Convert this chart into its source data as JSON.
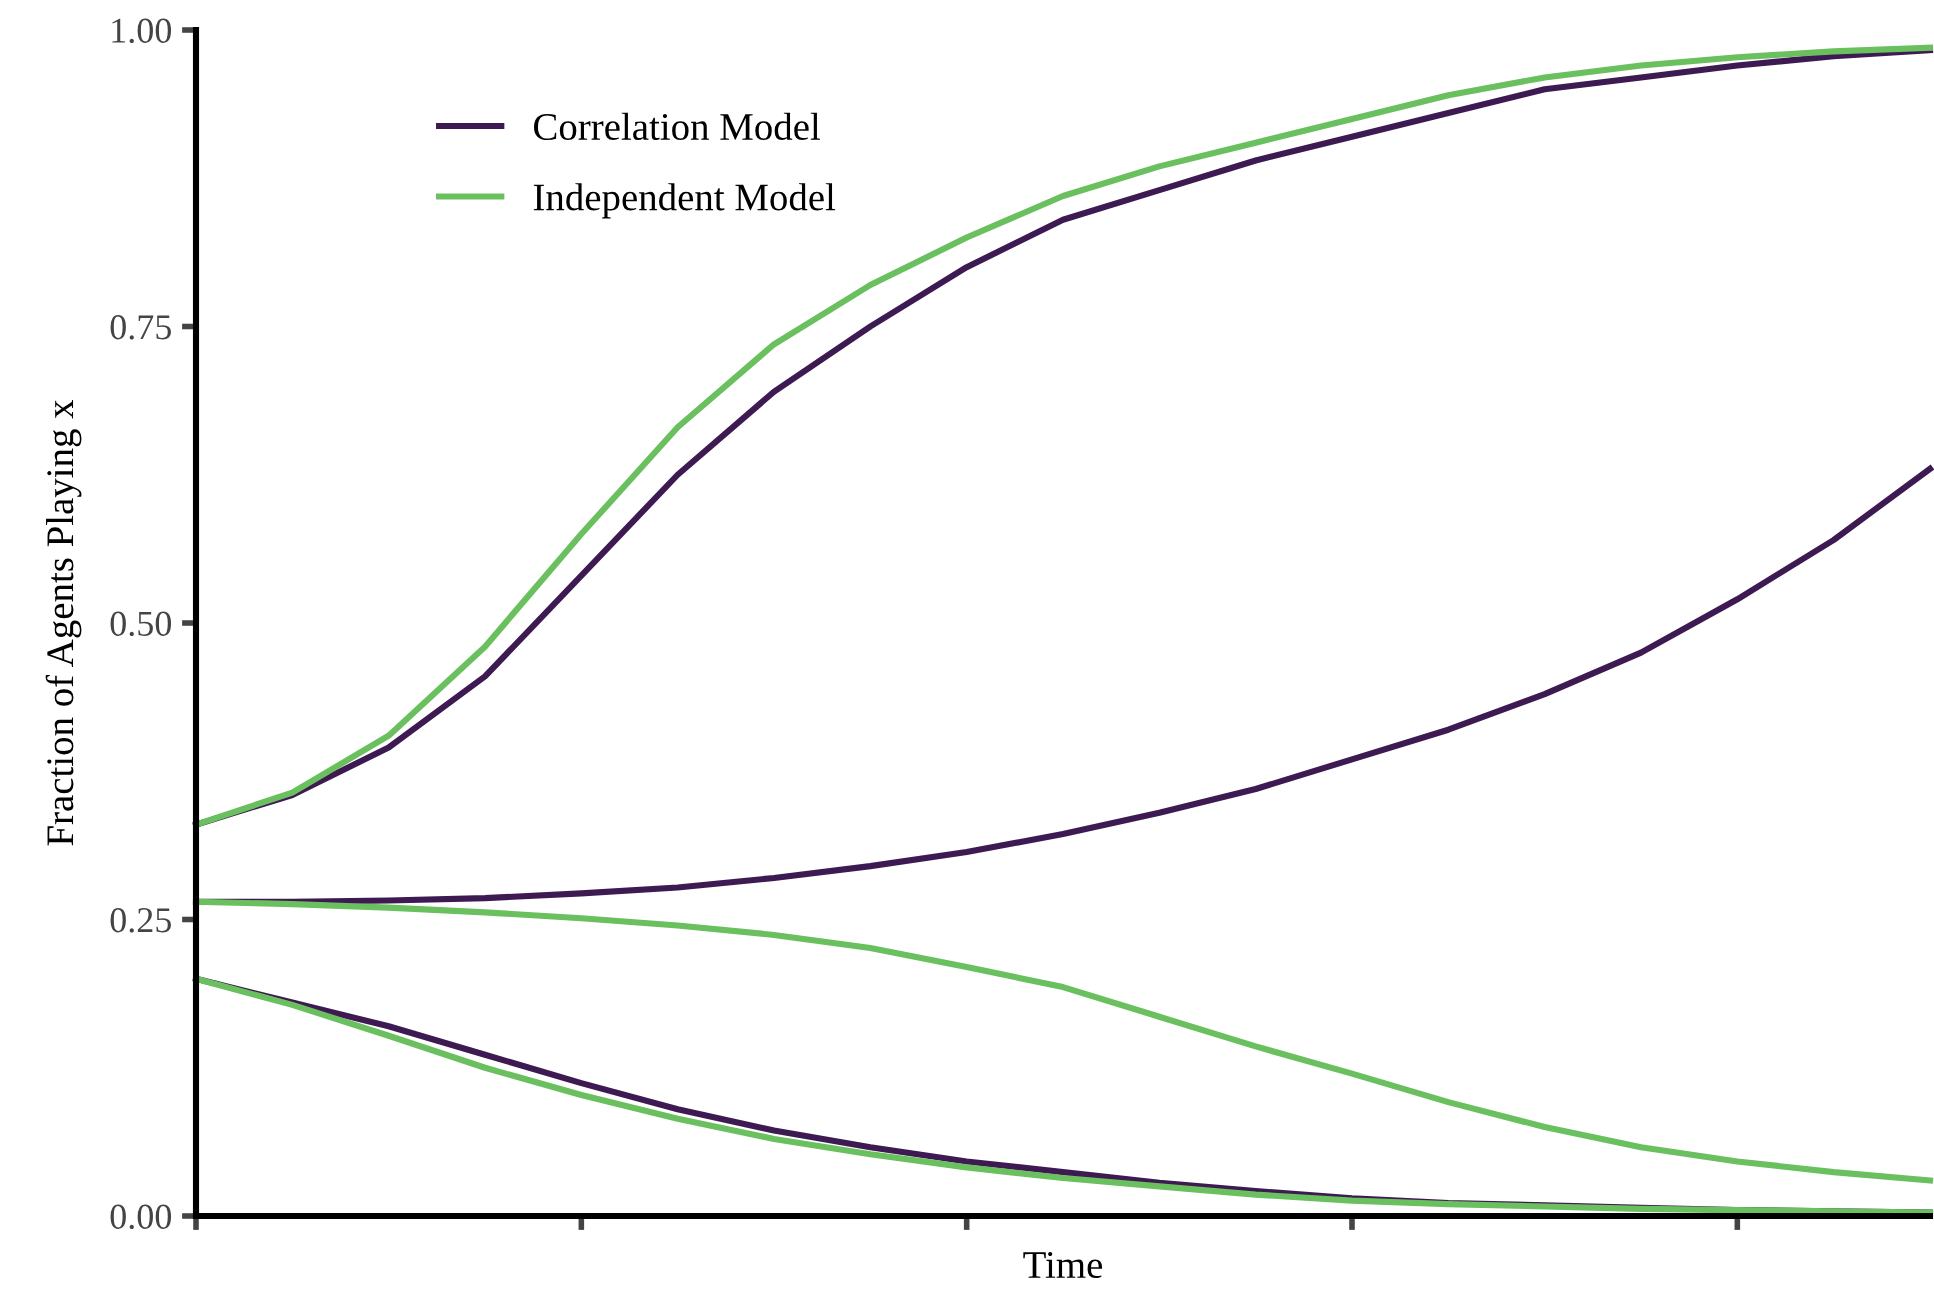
{
  "chart_data": {
    "type": "line",
    "xlabel": "Time",
    "ylabel": "Fraction of Agents Playing x",
    "categories": [
      null,
      null,
      null,
      null,
      null,
      null,
      null,
      null,
      null,
      null,
      null,
      null,
      null,
      null,
      null,
      null,
      null,
      null,
      null
    ],
    "series": [
      {
        "name": "Correlation Model",
        "color": "#3d1a52",
        "values": [
          0.33,
          0.355,
          0.395,
          0.455,
          0.54,
          0.625,
          0.695,
          0.75,
          0.8,
          0.84,
          0.865,
          0.89,
          0.91,
          0.93,
          0.95,
          0.96,
          0.97,
          0.978,
          0.983
        ]
      },
      {
        "name": "Independent Model",
        "color": "#6abf5e",
        "values": [
          0.33,
          0.357,
          0.405,
          0.48,
          0.575,
          0.665,
          0.735,
          0.785,
          0.825,
          0.86,
          0.885,
          0.905,
          0.925,
          0.945,
          0.96,
          0.97,
          0.977,
          0.982,
          0.985
        ]
      },
      {
        "color": "#3d1a52",
        "values": [
          0.265,
          0.265,
          0.266,
          0.268,
          0.272,
          0.277,
          0.285,
          0.295,
          0.307,
          0.322,
          0.34,
          0.36,
          0.385,
          0.41,
          0.44,
          0.475,
          0.52,
          0.57,
          0.63
        ]
      },
      {
        "color": "#6abf5e",
        "values": [
          0.265,
          0.263,
          0.26,
          0.256,
          0.251,
          0.245,
          0.237,
          0.226,
          0.21,
          0.193,
          0.168,
          0.143,
          0.12,
          0.096,
          0.075,
          0.058,
          0.046,
          0.037,
          0.03
        ]
      },
      {
        "color": "#3d1a52",
        "values": [
          0.2,
          0.18,
          0.16,
          0.136,
          0.112,
          0.09,
          0.072,
          0.058,
          0.046,
          0.037,
          0.028,
          0.021,
          0.015,
          0.011,
          0.009,
          0.007,
          0.005,
          0.004,
          0.003
        ]
      },
      {
        "color": "#6abf5e",
        "values": [
          0.2,
          0.178,
          0.152,
          0.125,
          0.102,
          0.082,
          0.065,
          0.052,
          0.041,
          0.032,
          0.025,
          0.018,
          0.013,
          0.01,
          0.008,
          0.006,
          0.005,
          0.004,
          0.003
        ]
      }
    ],
    "ylim": [
      0,
      1
    ],
    "yticks": [
      {
        "value": 0,
        "label": "0.00"
      },
      {
        "value": 0.25,
        "label": "0.25"
      },
      {
        "value": 0.5,
        "label": "0.50"
      },
      {
        "value": 0.75,
        "label": "0.75"
      },
      {
        "value": 1,
        "label": "1.00"
      }
    ],
    "grid": false,
    "legend": "top left",
    "marker": "none",
    "line_style": "solid",
    "tick_labels": "y"
  }
}
